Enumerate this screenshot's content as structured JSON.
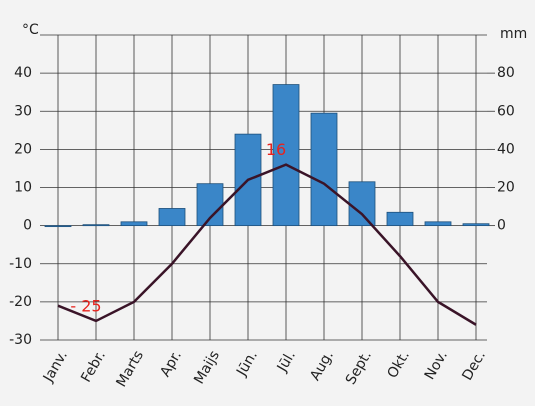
{
  "chart_data": {
    "type": "climate",
    "y_label": "°C",
    "y2_label": "mm",
    "categories": [
      "Janv.",
      "Febr.",
      "Marts",
      "Apr.",
      "Maijs",
      "Jūn.",
      "Jūl.",
      "Aug.",
      "Sept.",
      "Okt.",
      "Nov.",
      "Dec."
    ],
    "series": [
      {
        "type": "bar",
        "axis": "y2",
        "color": "#3a86c8",
        "values": [
          0,
          0.5,
          2,
          9,
          22,
          48,
          74,
          59,
          23,
          7,
          2,
          1
        ]
      },
      {
        "type": "line",
        "color": "#3a1428",
        "values": [
          -21,
          -25,
          -20,
          -10,
          2,
          12,
          16,
          11,
          3,
          -8,
          -20,
          -26
        ],
        "value_labels": [
          null,
          "- 25",
          null,
          null,
          null,
          null,
          "16",
          null,
          null,
          null,
          null,
          null
        ],
        "label_color": "#e8231e"
      }
    ],
    "ylim": [
      -30,
      50
    ],
    "yticks": [
      -30,
      -20,
      -10,
      0,
      10,
      20,
      30,
      40
    ],
    "y2lim": [
      -60,
      100
    ],
    "y2ticks": [
      0,
      20,
      40,
      60,
      80
    ],
    "grid": true
  }
}
